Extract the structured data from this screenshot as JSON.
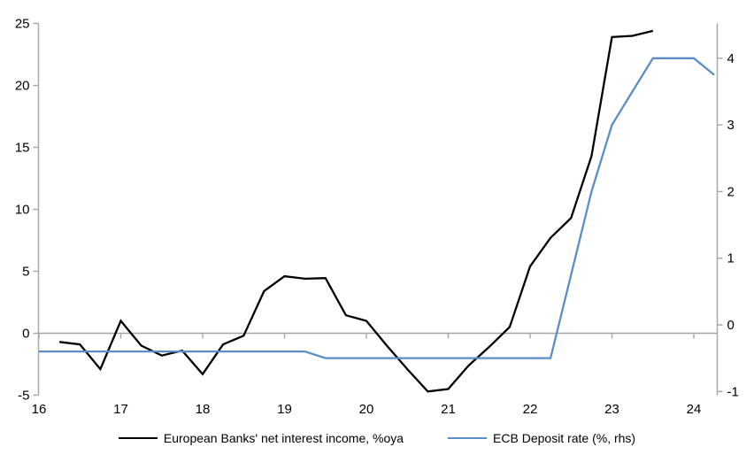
{
  "chart_data": {
    "type": "line",
    "title": "",
    "grid": "zero-line-only",
    "legend_position": "bottom-center",
    "background_color": "#FFFFFF",
    "axis_color": "#A6A6A6",
    "x_axis": {
      "label": "",
      "tick_labels": [
        "16",
        "17",
        "18",
        "19",
        "20",
        "21",
        "22",
        "23",
        "24"
      ],
      "tick_values": [
        16,
        17,
        18,
        19,
        20,
        21,
        22,
        23,
        24
      ],
      "range": [
        16,
        24.28
      ]
    },
    "left_y_axis": {
      "label": "",
      "tick_values": [
        -5,
        0,
        5,
        10,
        15,
        20,
        25
      ],
      "range": [
        -5,
        25
      ]
    },
    "right_y_axis": {
      "label": "",
      "tick_values": [
        -1,
        0,
        1,
        2,
        3,
        4
      ],
      "range": [
        -1.06,
        4.52
      ]
    },
    "series": [
      {
        "name": "European Banks' net interest income, %oya",
        "axis": "left",
        "color": "#000000",
        "x": [
          16.25,
          16.5,
          16.75,
          17.0,
          17.25,
          17.5,
          17.75,
          18.0,
          18.25,
          18.5,
          18.75,
          19.0,
          19.25,
          19.5,
          19.75,
          20.0,
          20.25,
          20.5,
          20.75,
          21.0,
          21.25,
          21.5,
          21.75,
          22.0,
          22.25,
          22.5,
          22.75,
          23.0,
          23.25,
          23.5
        ],
        "y": [
          -0.7,
          -0.9,
          -2.9,
          1.0,
          -1.0,
          -1.8,
          -1.4,
          -3.3,
          -0.9,
          -0.2,
          3.4,
          4.6,
          4.4,
          4.45,
          1.45,
          1.0,
          -1.0,
          -2.9,
          -4.7,
          -4.5,
          -2.6,
          -1.1,
          0.5,
          5.4,
          7.7,
          9.3,
          14.3,
          23.9,
          24.0,
          24.4
        ]
      },
      {
        "name": "ECB Deposit rate (%, rhs)",
        "axis": "right",
        "color": "#5B8EC4",
        "x": [
          16.0,
          19.25,
          19.5,
          22.25,
          22.5,
          22.75,
          23.0,
          23.25,
          23.5,
          24.0,
          24.25
        ],
        "y": [
          -0.4,
          -0.4,
          -0.5,
          -0.5,
          0.75,
          2.0,
          3.0,
          3.5,
          4.0,
          4.0,
          3.75
        ]
      }
    ]
  }
}
